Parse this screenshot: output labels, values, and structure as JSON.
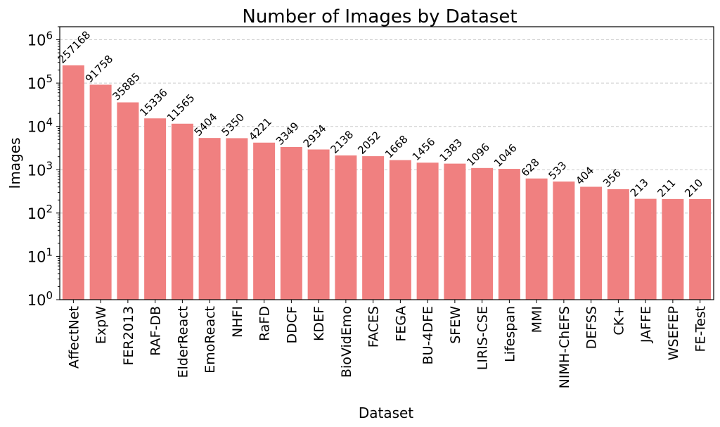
{
  "chart_data": {
    "type": "bar",
    "title": "Number of Images by Dataset",
    "xlabel": "Dataset",
    "ylabel": "Images",
    "yscale": "log",
    "ylim": [
      1,
      2000000
    ],
    "ytick_values": [
      1,
      10,
      100,
      1000,
      10000,
      100000,
      1000000
    ],
    "ytick_labels": [
      {
        "base": "10",
        "exp": "0"
      },
      {
        "base": "10",
        "exp": "1"
      },
      {
        "base": "10",
        "exp": "2"
      },
      {
        "base": "10",
        "exp": "3"
      },
      {
        "base": "10",
        "exp": "4"
      },
      {
        "base": "10",
        "exp": "5"
      },
      {
        "base": "10",
        "exp": "6"
      }
    ],
    "grid": "y-major-dashed",
    "bar_color": "#f08080",
    "categories": [
      "AffectNet",
      "ExpW",
      "FER2013",
      "RAF-DB",
      "ElderReact",
      "EmoReact",
      "NHFI",
      "RaFD",
      "DDCF",
      "KDEF",
      "BioVidEmo",
      "FACES",
      "FEGA",
      "BU-4DFE",
      "SFEW",
      "LIRIS-CSE",
      "Lifespan",
      "MMI",
      "NIMH-ChEFS",
      "DEFSS",
      "CK+",
      "JAFFE",
      "WSEFEP",
      "FE-Test"
    ],
    "values": [
      257168,
      91758,
      35885,
      15336,
      11565,
      5404,
      5350,
      4221,
      3349,
      2934,
      2138,
      2052,
      1668,
      1456,
      1383,
      1096,
      1046,
      628,
      533,
      404,
      356,
      213,
      211,
      210
    ]
  }
}
